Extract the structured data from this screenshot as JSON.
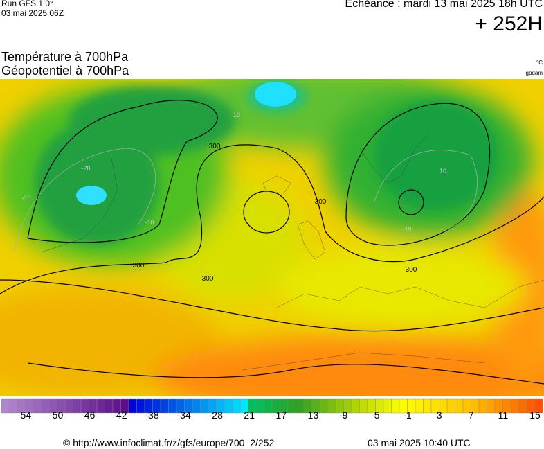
{
  "header": {
    "run": "Run GFS 1.0°",
    "run_date": "03 mai 2025 06Z",
    "echeance": "Echéance : mardi 13 mai 2025 18h UTC",
    "lead": "+ 252H"
  },
  "titles": {
    "line1": "Température à 700hPa",
    "line2": "Géopotentiel à 700hPa",
    "unit1": "°C",
    "unit2": "gpdam"
  },
  "map": {
    "contour_labels": [
      "300",
      "300",
      "300",
      "300",
      "300"
    ],
    "temp_labels": [
      "-10",
      "-20",
      "-10",
      "10",
      "-10",
      "10"
    ]
  },
  "legend": {
    "labels": [
      -54,
      -50,
      -46,
      -42,
      -38,
      -34,
      -28,
      -21,
      -17,
      -13,
      -9,
      -5,
      -1,
      3,
      7,
      11,
      15
    ]
  },
  "footer": {
    "url": "© http://www.infoclimat.fr/z/gfs/europe/700_2/252",
    "timestamp": "03 mai 2025 10:40 UTC"
  }
}
